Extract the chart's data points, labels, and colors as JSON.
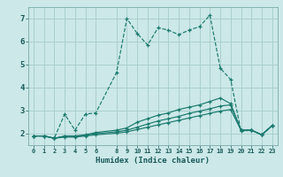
{
  "xlabel": "Humidex (Indice chaleur)",
  "bg_color": "#cce8e8",
  "grid_color": "#aacfcf",
  "line_color": "#1a7a6e",
  "xlim": [
    -0.5,
    23.5
  ],
  "ylim": [
    1.5,
    7.5
  ],
  "xticks": [
    0,
    1,
    2,
    3,
    4,
    5,
    6,
    8,
    9,
    10,
    11,
    12,
    13,
    14,
    15,
    16,
    17,
    18,
    19,
    20,
    21,
    22,
    23
  ],
  "yticks": [
    2,
    3,
    4,
    5,
    6,
    7
  ],
  "series": [
    {
      "x": [
        0,
        1,
        2,
        3,
        4,
        5,
        6,
        8,
        9,
        10,
        11,
        12,
        13,
        14,
        15,
        16,
        17,
        18,
        19,
        20,
        21,
        22,
        23
      ],
      "y": [
        1.9,
        1.9,
        1.8,
        2.85,
        2.15,
        2.85,
        2.9,
        4.65,
        7.0,
        6.35,
        5.85,
        6.6,
        6.5,
        6.3,
        6.5,
        6.65,
        7.15,
        4.85,
        4.35,
        2.1,
        2.15,
        1.95,
        2.35
      ],
      "linestyle": "--",
      "marker": "+"
    },
    {
      "x": [
        0,
        1,
        2,
        3,
        4,
        5,
        6,
        8,
        9,
        10,
        11,
        12,
        13,
        14,
        15,
        16,
        17,
        18,
        19,
        20,
        21,
        22,
        23
      ],
      "y": [
        1.9,
        1.9,
        1.8,
        1.9,
        1.9,
        1.95,
        2.05,
        2.15,
        2.25,
        2.5,
        2.65,
        2.8,
        2.9,
        3.05,
        3.15,
        3.25,
        3.4,
        3.55,
        3.3,
        2.15,
        2.15,
        1.95,
        2.35
      ],
      "linestyle": "-",
      "marker": "+"
    },
    {
      "x": [
        0,
        1,
        2,
        3,
        4,
        5,
        6,
        8,
        9,
        10,
        11,
        12,
        13,
        14,
        15,
        16,
        17,
        18,
        19,
        20,
        21,
        22,
        23
      ],
      "y": [
        1.9,
        1.9,
        1.8,
        1.88,
        1.88,
        1.92,
        2.0,
        2.08,
        2.15,
        2.28,
        2.42,
        2.55,
        2.65,
        2.75,
        2.88,
        2.98,
        3.08,
        3.2,
        3.25,
        2.15,
        2.15,
        1.95,
        2.35
      ],
      "linestyle": "-",
      "marker": "+"
    },
    {
      "x": [
        0,
        1,
        2,
        3,
        4,
        5,
        6,
        8,
        9,
        10,
        11,
        12,
        13,
        14,
        15,
        16,
        17,
        18,
        19,
        20,
        21,
        22,
        23
      ],
      "y": [
        1.9,
        1.9,
        1.8,
        1.85,
        1.85,
        1.9,
        1.95,
        2.02,
        2.08,
        2.18,
        2.28,
        2.38,
        2.48,
        2.58,
        2.68,
        2.78,
        2.88,
        2.98,
        3.05,
        2.15,
        2.15,
        1.95,
        2.35
      ],
      "linestyle": "-",
      "marker": "+"
    }
  ]
}
